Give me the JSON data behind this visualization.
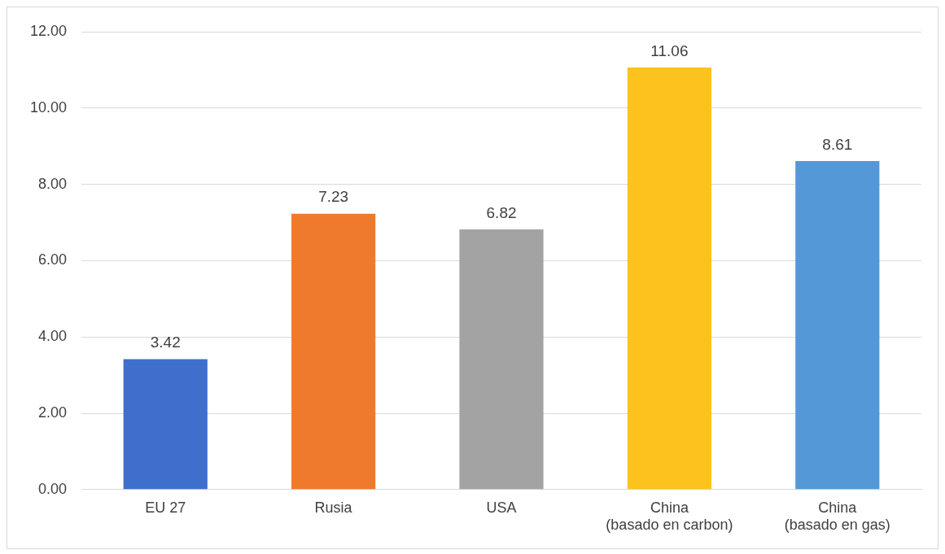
{
  "chart_data": {
    "type": "bar",
    "categories": [
      "EU 27",
      "Rusia",
      "USA",
      "China\n(basado en carbon)",
      "China\n(basado en gas)"
    ],
    "values": [
      3.42,
      7.23,
      6.82,
      11.06,
      8.61
    ],
    "colors": [
      "#3f6fcc",
      "#f07a2c",
      "#a3a3a3",
      "#fdc21d",
      "#5598d8"
    ],
    "ylim": [
      0,
      12
    ],
    "yticks": [
      {
        "value": 0,
        "label": "0.00"
      },
      {
        "value": 2,
        "label": "2.00"
      },
      {
        "value": 4,
        "label": "4.00"
      },
      {
        "value": 6,
        "label": "6.00"
      },
      {
        "value": 8,
        "label": "8.00"
      },
      {
        "value": 10,
        "label": "10.00"
      },
      {
        "value": 12,
        "label": "12.00"
      }
    ],
    "grid": "y",
    "data_labels": true,
    "legend": false
  }
}
